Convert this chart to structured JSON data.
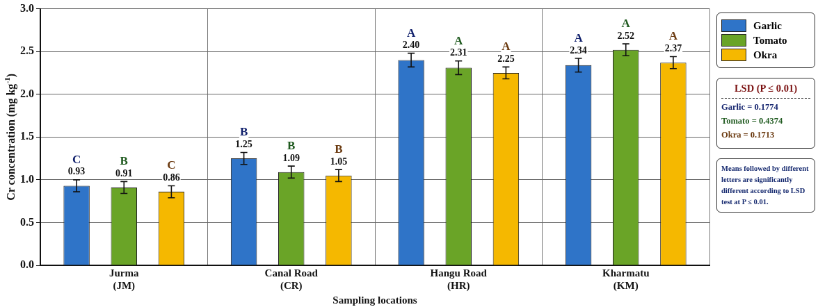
{
  "chart_data": {
    "type": "bar",
    "xlabel": "Sampling locations",
    "ylabel": "Cr concentration (mg kg$^{-1}$)",
    "categories": [
      "Jurma\n(JM)",
      "Canal Road\n(CR)",
      "Hangu Road\n(HR)",
      "Kharmatu\n(KM)"
    ],
    "series": [
      {
        "name": "Garlic",
        "color": "#2f74c8",
        "values": [
          0.93,
          1.25,
          2.4,
          2.34
        ],
        "errors": [
          0.07,
          0.07,
          0.08,
          0.08
        ],
        "value_labels": [
          "C\n0.93",
          "B\n1.25",
          "A\n2.40",
          "A\n2.34"
        ]
      },
      {
        "name": "Tomato",
        "color": "#6aa427",
        "values": [
          0.91,
          1.09,
          2.31,
          2.52
        ],
        "errors": [
          0.07,
          0.07,
          0.08,
          0.07
        ],
        "value_labels": [
          "B\n0.91",
          "B\n1.09",
          "A\n2.31",
          "A\n2.52"
        ]
      },
      {
        "name": "Okra",
        "color": "#f5b800",
        "values": [
          0.86,
          1.05,
          2.25,
          2.37
        ],
        "errors": [
          0.07,
          0.07,
          0.07,
          0.07
        ],
        "value_labels": [
          "C\n0.86",
          "B\n1.05",
          "A\n2.25",
          "A\n2.37"
        ]
      }
    ],
    "ylim": [
      0,
      3
    ],
    "yticks": [
      {
        "value": 0,
        "label": "0.0"
      },
      {
        "value": 0.5,
        "label": "0.5"
      },
      {
        "value": 1,
        "label": "1.0"
      },
      {
        "value": 1.5,
        "label": "1.5"
      },
      {
        "value": 2,
        "label": "2.0"
      },
      {
        "value": 2.5,
        "label": "2.5"
      },
      {
        "value": 3,
        "label": "3.0"
      }
    ],
    "grid": true,
    "legend": "right",
    "annotations": [
      "LSD (P ≤ 0.01)",
      "Garlic = 0.1774",
      "Tomato = 0.4374",
      "Okra = 0.1713",
      "Means followed by different letters are significantly different according to LSD test at P ≤ 0.01."
    ]
  }
}
